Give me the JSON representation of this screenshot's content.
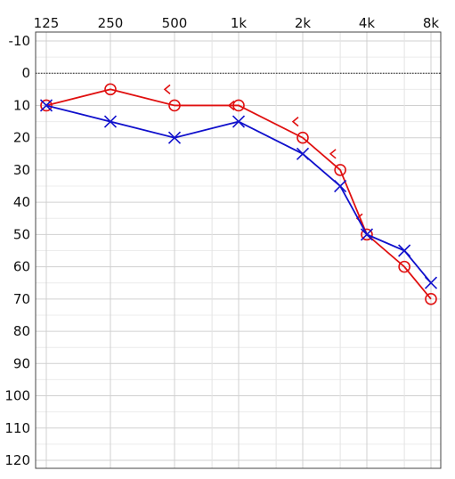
{
  "chart_data": {
    "type": "line",
    "title": "",
    "xlabel": "",
    "ylabel": "",
    "x_scale": "log2",
    "y_inverted": true,
    "grid": true,
    "x_ticks": [
      {
        "value": 125,
        "label": "125"
      },
      {
        "value": 250,
        "label": "250"
      },
      {
        "value": 500,
        "label": "500"
      },
      {
        "value": 1000,
        "label": "1k"
      },
      {
        "value": 2000,
        "label": "2k"
      },
      {
        "value": 4000,
        "label": "4k"
      },
      {
        "value": 8000,
        "label": "8k"
      }
    ],
    "x_minor_ticks": [
      750,
      1500,
      3000,
      6000
    ],
    "y_ticks": [
      -10,
      0,
      10,
      20,
      30,
      40,
      50,
      60,
      70,
      80,
      90,
      100,
      110,
      120
    ],
    "ylim": [
      -10,
      120
    ],
    "reference_line": {
      "y": 0,
      "style": "dotted"
    },
    "series": [
      {
        "color": "#e01010",
        "marker": "circle",
        "x": [
          125,
          250,
          500,
          1000,
          2000,
          3000,
          4000,
          6000,
          8000
        ],
        "y": [
          10,
          5,
          10,
          10,
          20,
          30,
          50,
          60,
          70
        ]
      },
      {
        "color": "#1010cc",
        "marker": "cross",
        "x": [
          125,
          250,
          500,
          1000,
          2000,
          3000,
          4000,
          6000,
          8000
        ],
        "y": [
          10,
          15,
          20,
          15,
          25,
          35,
          50,
          55,
          65
        ]
      }
    ],
    "annotations": [
      {
        "symbol": "bracket-left",
        "color": "#e01010",
        "x": 500,
        "y": 5
      },
      {
        "symbol": "bracket-left",
        "color": "#e01010",
        "x": 1000,
        "y": 10
      },
      {
        "symbol": "bracket-left",
        "color": "#e01010",
        "x": 2000,
        "y": 15
      },
      {
        "symbol": "bracket-left",
        "color": "#e01010",
        "x": 3000,
        "y": 25
      },
      {
        "symbol": "bracket-left",
        "color": "#e01010",
        "x": 4000,
        "y": 45
      }
    ]
  }
}
